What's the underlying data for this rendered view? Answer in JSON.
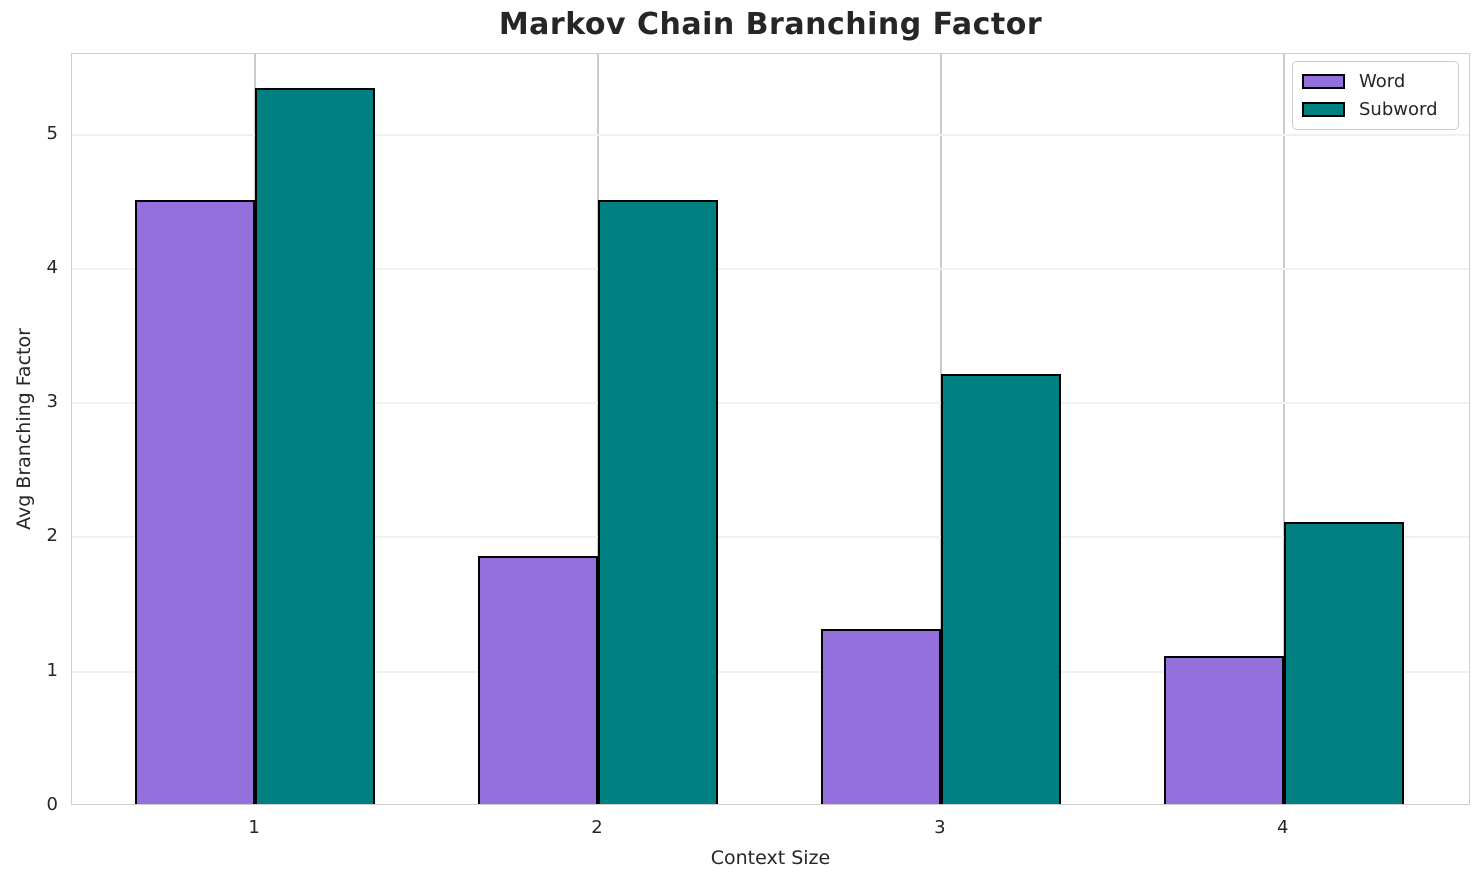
{
  "chart_data": {
    "type": "bar",
    "title": "Markov Chain Branching Factor",
    "xlabel": "Context Size",
    "ylabel": "Avg Branching Factor",
    "categories": [
      "1",
      "2",
      "3",
      "4"
    ],
    "x_positions": [
      1,
      2,
      3,
      4
    ],
    "series": [
      {
        "name": "Word",
        "color": "#9370DB",
        "values": [
          4.5,
          1.85,
          1.3,
          1.1
        ]
      },
      {
        "name": "Subword",
        "color": "#008080",
        "values": [
          5.33,
          4.5,
          3.2,
          2.1
        ]
      }
    ],
    "bar_width": 0.35,
    "bar_edge_color": "#000000",
    "yticks": [
      "0",
      "1",
      "2",
      "3",
      "4",
      "5"
    ],
    "ytick_values": [
      0,
      1,
      2,
      3,
      4,
      5
    ],
    "ylim": [
      0,
      5.6
    ],
    "xlim": [
      0.466,
      4.546
    ],
    "grid": "on",
    "legend_position": "upper right",
    "colors": {
      "grid_horizontal": "#f0f0f0",
      "grid_vertical": "#cbcbcb",
      "spine": "#cfcfcf",
      "title_text": "#262626",
      "axis_text": "#262626"
    }
  }
}
